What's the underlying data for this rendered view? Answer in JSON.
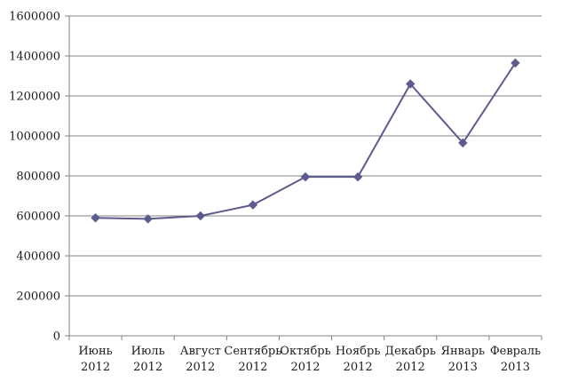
{
  "chart_data": {
    "type": "line",
    "title": "",
    "xlabel": "",
    "ylabel": "",
    "categories": [
      {
        "month": "Июнь",
        "year": "2012"
      },
      {
        "month": "Июль",
        "year": "2012"
      },
      {
        "month": "Август",
        "year": "2012"
      },
      {
        "month": "Сентябрь",
        "year": "2012"
      },
      {
        "month": "Октябрь",
        "year": "2012"
      },
      {
        "month": "Ноябрь",
        "year": "2012"
      },
      {
        "month": "Декабрь",
        "year": "2012"
      },
      {
        "month": "Январь",
        "year": "2013"
      },
      {
        "month": "Февраль",
        "year": "2013"
      }
    ],
    "values": [
      590000,
      585000,
      600000,
      655000,
      795000,
      795000,
      1260000,
      965000,
      1365000
    ],
    "ylim": [
      0,
      1600000
    ],
    "ytick_step": 200000,
    "ytick_labels": [
      "0",
      "200000",
      "400000",
      "600000",
      "800000",
      "1000000",
      "1200000",
      "1400000",
      "1600000"
    ],
    "grid": true,
    "legend": "none",
    "marker": "diamond",
    "line_color": "#5b5b8d",
    "grid_color": "#848484",
    "axis_color": "#808080",
    "text_color": "#1c1c1c",
    "background": "#ffffff"
  }
}
